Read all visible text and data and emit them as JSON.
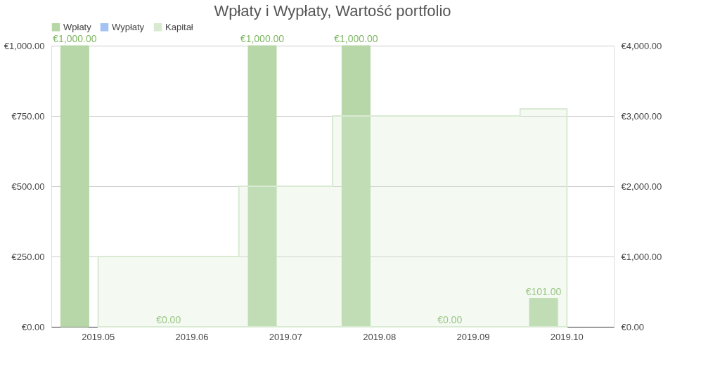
{
  "chart_data": {
    "type": "bar",
    "title": "Wpłaty i Wypłaty, Wartość portfolio",
    "categories": [
      "2019.05",
      "2019.06",
      "2019.07",
      "2019.08",
      "2019.09",
      "2019.10"
    ],
    "series": [
      {
        "name": "Wpłaty",
        "color": "#b7d7a8",
        "values": [
          1000,
          0,
          1000,
          1000,
          0,
          101
        ],
        "value_labels": [
          "€1,000.00",
          "€0.00",
          "€1,000.00",
          "€1,000.00",
          "€0.00",
          "€101.00"
        ]
      },
      {
        "name": "Wypłaty",
        "color": "#a4c2f4",
        "values": [
          null,
          null,
          null,
          null,
          null,
          null
        ]
      },
      {
        "name": "Kapitał",
        "type": "area",
        "axis": "y2",
        "color": "#d9ead3",
        "values": [
          1000,
          1000,
          2000,
          3000,
          3000,
          3100
        ]
      }
    ],
    "ylim": [
      0,
      1000
    ],
    "yticks": [
      {
        "value": 0,
        "label": "€0.00"
      },
      {
        "value": 250,
        "label": "€250.00"
      },
      {
        "value": 500,
        "label": "€500.00"
      },
      {
        "value": 750,
        "label": "€750.00"
      },
      {
        "value": 1000,
        "label": "€1,000.00"
      }
    ],
    "y2lim": [
      0,
      4000
    ],
    "y2ticks": [
      {
        "value": 0,
        "label": "€0.00"
      },
      {
        "value": 1000,
        "label": "€1,000.00"
      },
      {
        "value": 2000,
        "label": "€2,000.00"
      },
      {
        "value": 3000,
        "label": "€3,000.00"
      },
      {
        "value": 4000,
        "label": "€4,000.00"
      }
    ],
    "grid": "y",
    "legend": "top"
  }
}
